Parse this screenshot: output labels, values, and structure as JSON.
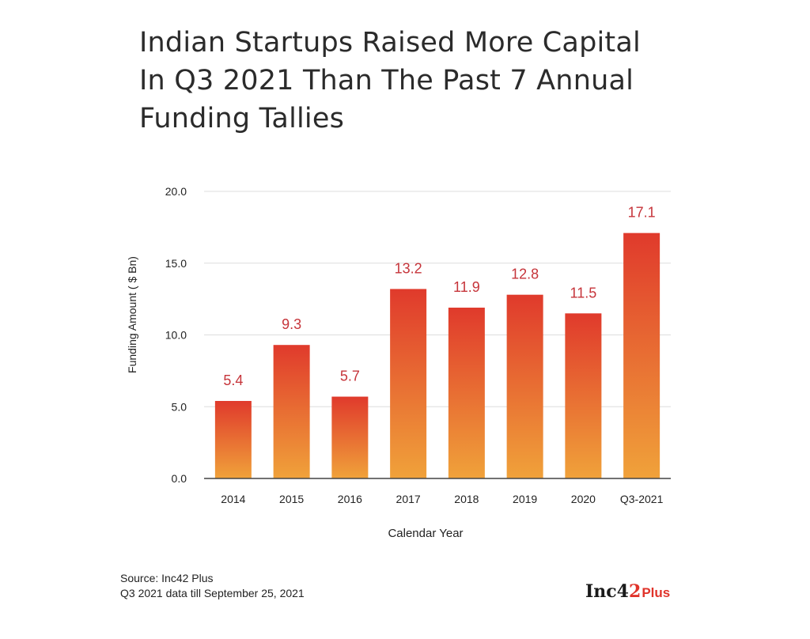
{
  "title_lines": [
    "Indian Startups Raised More Capital",
    "In Q3 2021 Than The Past 7 Annual",
    "Funding Tallies"
  ],
  "chart_data": {
    "type": "bar",
    "title": "Indian Startups Raised More Capital In Q3 2021 Than The Past 7 Annual Funding Tallies",
    "xlabel": "Calendar Year",
    "ylabel": "Funding Amount ( $ Bn)",
    "categories": [
      "2014",
      "2015",
      "2016",
      "2017",
      "2018",
      "2019",
      "2020",
      "Q3-2021"
    ],
    "values": [
      5.4,
      9.3,
      5.7,
      13.2,
      11.9,
      12.8,
      11.5,
      17.1
    ],
    "value_labels": [
      "5.4",
      "9.3",
      "5.7",
      "13.2",
      "11.9",
      "12.8",
      "11.5",
      "17.1"
    ],
    "ylim": [
      0,
      20
    ],
    "yticks": [
      0,
      5,
      10,
      15,
      20
    ],
    "ytick_labels": [
      "0.0",
      "5.0",
      "10.0",
      "15.0",
      "20.0"
    ],
    "grid": true,
    "colors": {
      "bar_top": "#e03a2c",
      "bar_bottom": "#f0a23a",
      "value_label": "#c6343a",
      "grid": "#dddddd"
    }
  },
  "footer": {
    "source": "Source: Inc42 Plus",
    "note": "Q3 2021 data till September 25, 2021"
  },
  "logo": {
    "main": "Inc4",
    "accent": "2",
    "suffix": "Plus"
  }
}
